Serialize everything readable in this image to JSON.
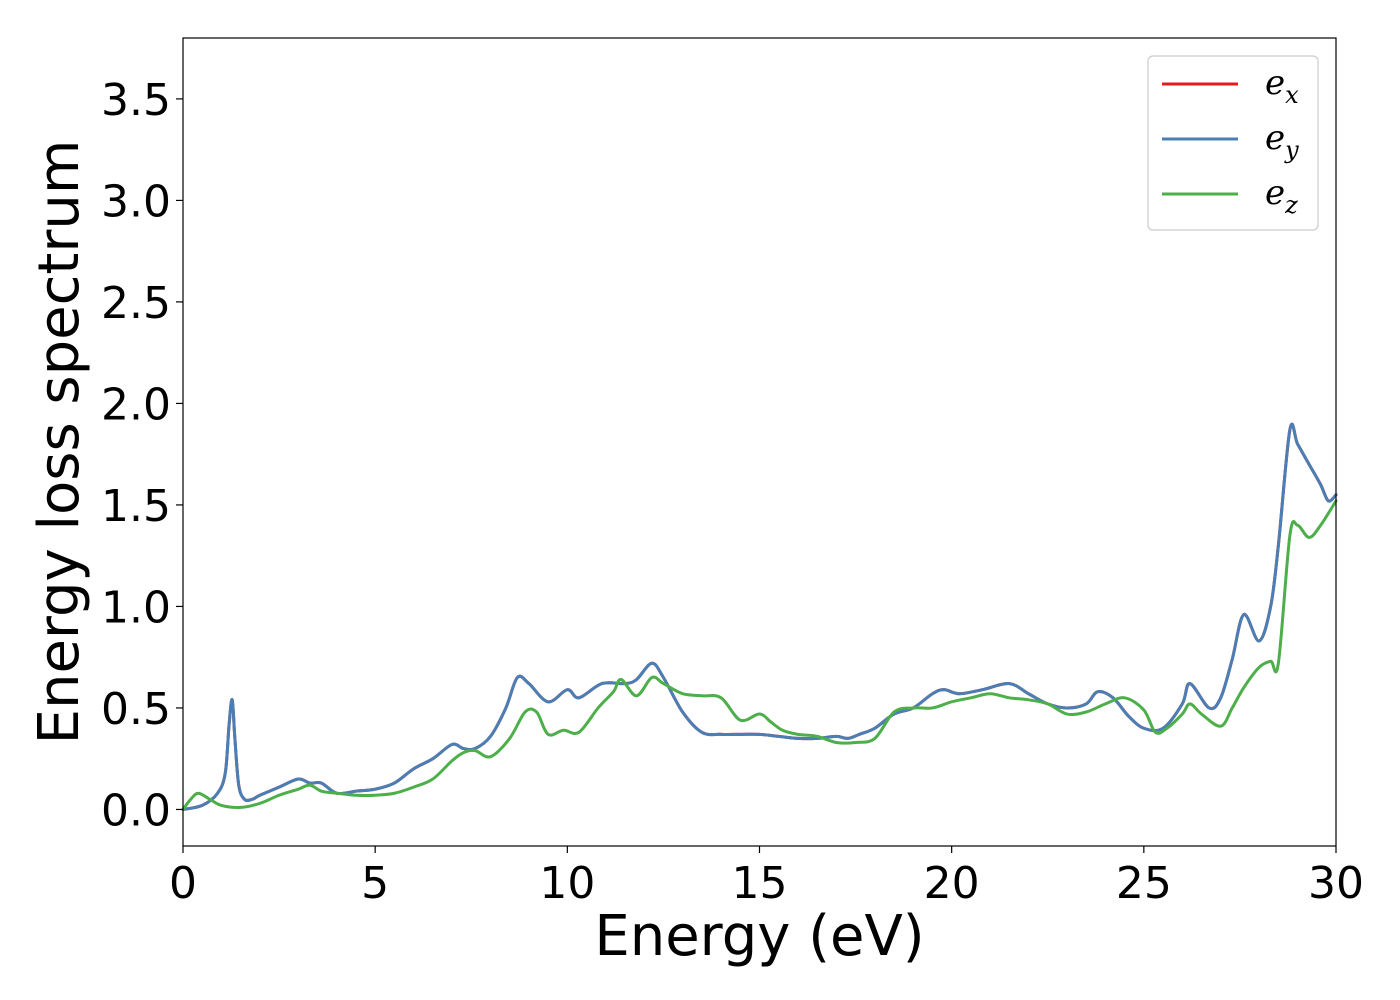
{
  "chart_data": {
    "type": "line",
    "xlabel": "Energy (eV)",
    "ylabel": "Energy loss spectrum",
    "xlim": [
      0,
      30
    ],
    "ylim": [
      -0.18,
      3.8
    ],
    "xticks": [
      0,
      5,
      10,
      15,
      20,
      25,
      30
    ],
    "xtick_labels": [
      "0",
      "5",
      "10",
      "15",
      "20",
      "25",
      "30"
    ],
    "yticks": [
      0.0,
      0.5,
      1.0,
      1.5,
      2.0,
      2.5,
      3.0,
      3.5
    ],
    "ytick_labels": [
      "0.0",
      "0.5",
      "1.0",
      "1.5",
      "2.0",
      "2.5",
      "3.0",
      "3.5"
    ],
    "grid": false,
    "legend_position": "top-right",
    "series": [
      {
        "name": "e_x",
        "label_base": "e",
        "label_sub": "x",
        "color": "#e41a1c",
        "x": [
          0,
          0.5,
          0.9,
          1.1,
          1.2,
          1.28,
          1.35,
          1.45,
          1.6,
          1.8,
          2.0,
          2.5,
          3.0,
          3.3,
          3.6,
          4.0,
          4.5,
          5.0,
          5.5,
          6.0,
          6.5,
          7.0,
          7.3,
          7.6,
          8.0,
          8.4,
          8.7,
          9.0,
          9.5,
          10.0,
          10.3,
          10.9,
          11.5,
          11.8,
          12.2,
          12.5,
          13.0,
          13.5,
          14.0,
          14.5,
          15.0,
          15.5,
          16.0,
          16.5,
          17.0,
          17.3,
          17.6,
          18.0,
          18.5,
          19.0,
          19.5,
          19.8,
          20.2,
          20.8,
          21.5,
          22.0,
          22.5,
          23.0,
          23.5,
          23.8,
          24.2,
          24.6,
          25.0,
          25.5,
          26.0,
          26.2,
          26.7,
          27.0,
          27.3,
          27.6,
          28.0,
          28.3,
          28.5,
          28.8,
          29.0,
          29.3,
          29.6,
          29.8,
          30.0
        ],
        "y": [
          0.0,
          0.02,
          0.08,
          0.18,
          0.42,
          0.54,
          0.35,
          0.12,
          0.05,
          0.05,
          0.07,
          0.11,
          0.15,
          0.13,
          0.13,
          0.08,
          0.09,
          0.1,
          0.13,
          0.2,
          0.25,
          0.32,
          0.3,
          0.3,
          0.36,
          0.5,
          0.65,
          0.62,
          0.53,
          0.59,
          0.55,
          0.62,
          0.62,
          0.64,
          0.72,
          0.65,
          0.48,
          0.38,
          0.37,
          0.37,
          0.37,
          0.36,
          0.35,
          0.35,
          0.36,
          0.35,
          0.37,
          0.4,
          0.47,
          0.5,
          0.57,
          0.59,
          0.57,
          0.59,
          0.62,
          0.57,
          0.52,
          0.5,
          0.52,
          0.58,
          0.55,
          0.46,
          0.4,
          0.4,
          0.52,
          0.62,
          0.5,
          0.55,
          0.74,
          0.96,
          0.83,
          1.0,
          1.3,
          1.87,
          1.8,
          1.7,
          1.6,
          1.52,
          1.55
        ]
      },
      {
        "name": "e_y",
        "label_base": "e",
        "label_sub": "y",
        "color": "#4a7fb5",
        "x": [
          0,
          0.5,
          0.9,
          1.1,
          1.2,
          1.28,
          1.35,
          1.45,
          1.6,
          1.8,
          2.0,
          2.5,
          3.0,
          3.3,
          3.6,
          4.0,
          4.5,
          5.0,
          5.5,
          6.0,
          6.5,
          7.0,
          7.3,
          7.6,
          8.0,
          8.4,
          8.7,
          9.0,
          9.5,
          10.0,
          10.3,
          10.9,
          11.5,
          11.8,
          12.2,
          12.5,
          13.0,
          13.5,
          14.0,
          14.5,
          15.0,
          15.5,
          16.0,
          16.5,
          17.0,
          17.3,
          17.6,
          18.0,
          18.5,
          19.0,
          19.5,
          19.8,
          20.2,
          20.8,
          21.5,
          22.0,
          22.5,
          23.0,
          23.5,
          23.8,
          24.2,
          24.6,
          25.0,
          25.5,
          26.0,
          26.2,
          26.7,
          27.0,
          27.3,
          27.6,
          28.0,
          28.3,
          28.5,
          28.8,
          29.0,
          29.3,
          29.6,
          29.8,
          30.0
        ],
        "y": [
          0.0,
          0.02,
          0.08,
          0.18,
          0.42,
          0.54,
          0.35,
          0.12,
          0.05,
          0.05,
          0.07,
          0.11,
          0.15,
          0.13,
          0.13,
          0.08,
          0.09,
          0.1,
          0.13,
          0.2,
          0.25,
          0.32,
          0.3,
          0.3,
          0.36,
          0.5,
          0.65,
          0.62,
          0.53,
          0.59,
          0.55,
          0.62,
          0.62,
          0.64,
          0.72,
          0.65,
          0.48,
          0.38,
          0.37,
          0.37,
          0.37,
          0.36,
          0.35,
          0.35,
          0.36,
          0.35,
          0.37,
          0.4,
          0.47,
          0.5,
          0.57,
          0.59,
          0.57,
          0.59,
          0.62,
          0.57,
          0.52,
          0.5,
          0.52,
          0.58,
          0.55,
          0.46,
          0.4,
          0.4,
          0.52,
          0.62,
          0.5,
          0.55,
          0.74,
          0.96,
          0.83,
          1.0,
          1.3,
          1.87,
          1.8,
          1.7,
          1.6,
          1.52,
          1.55
        ]
      },
      {
        "name": "e_z",
        "label_base": "e",
        "label_sub": "z",
        "color": "#4daf4a",
        "x": [
          0,
          0.2,
          0.4,
          0.7,
          1.0,
          1.5,
          2.0,
          2.5,
          3.0,
          3.3,
          3.6,
          4.0,
          4.5,
          5.0,
          5.5,
          6.0,
          6.5,
          7.0,
          7.3,
          7.6,
          8.0,
          8.5,
          8.9,
          9.2,
          9.5,
          9.9,
          10.3,
          10.8,
          11.2,
          11.4,
          11.8,
          12.2,
          12.5,
          13.0,
          13.5,
          14.0,
          14.5,
          15.0,
          15.3,
          15.6,
          16.0,
          16.5,
          17.0,
          17.5,
          18.0,
          18.5,
          19.0,
          19.5,
          20.0,
          20.5,
          21.0,
          21.5,
          22.0,
          22.5,
          23.0,
          23.5,
          24.0,
          24.5,
          25.0,
          25.3,
          25.6,
          26.0,
          26.2,
          26.5,
          27.0,
          27.3,
          27.6,
          28.0,
          28.3,
          28.5,
          28.8,
          29.0,
          29.3,
          29.6,
          30.0
        ],
        "y": [
          0.0,
          0.05,
          0.08,
          0.05,
          0.02,
          0.01,
          0.03,
          0.07,
          0.1,
          0.12,
          0.09,
          0.08,
          0.07,
          0.07,
          0.08,
          0.11,
          0.15,
          0.24,
          0.28,
          0.29,
          0.26,
          0.35,
          0.48,
          0.48,
          0.37,
          0.39,
          0.38,
          0.5,
          0.58,
          0.64,
          0.56,
          0.65,
          0.62,
          0.57,
          0.56,
          0.55,
          0.44,
          0.47,
          0.43,
          0.39,
          0.37,
          0.36,
          0.33,
          0.33,
          0.35,
          0.48,
          0.5,
          0.5,
          0.53,
          0.55,
          0.57,
          0.55,
          0.54,
          0.52,
          0.47,
          0.48,
          0.52,
          0.55,
          0.49,
          0.38,
          0.4,
          0.47,
          0.52,
          0.47,
          0.41,
          0.5,
          0.6,
          0.7,
          0.73,
          0.72,
          1.35,
          1.4,
          1.34,
          1.4,
          1.52
        ]
      }
    ]
  }
}
